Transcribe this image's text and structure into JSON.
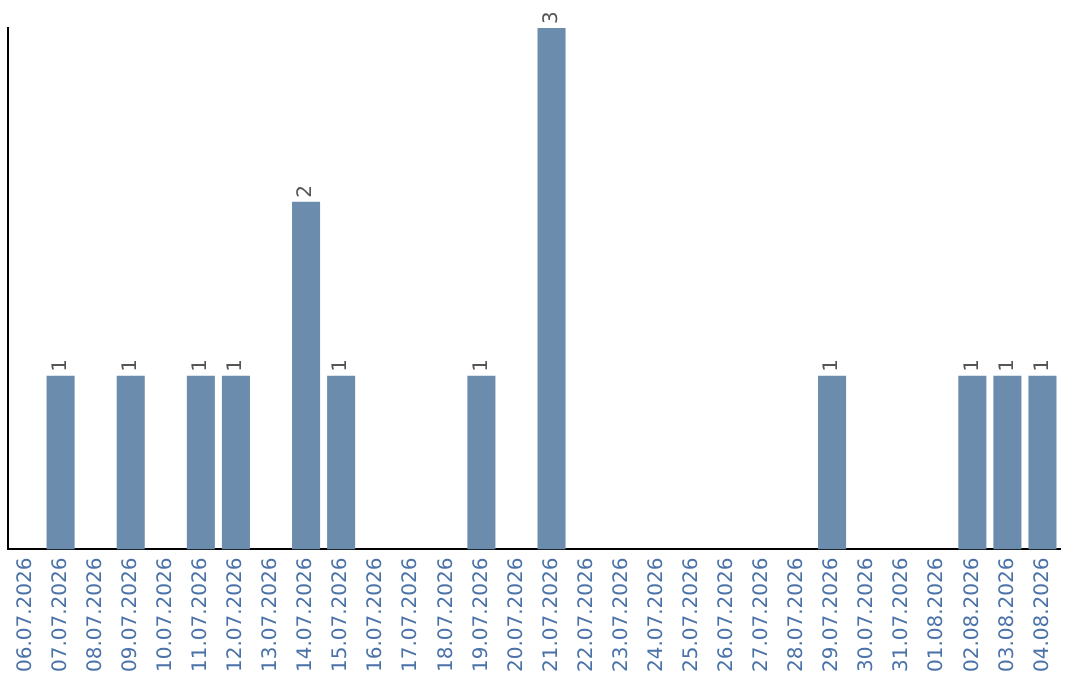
{
  "chart_data": {
    "type": "bar",
    "categories": [
      "06.07.2026",
      "07.07.2026",
      "08.07.2026",
      "09.07.2026",
      "10.07.2026",
      "11.07.2026",
      "12.07.2026",
      "13.07.2026",
      "14.07.2026",
      "15.07.2026",
      "16.07.2026",
      "17.07.2026",
      "18.07.2026",
      "19.07.2026",
      "20.07.2026",
      "21.07.2026",
      "22.07.2026",
      "23.07.2026",
      "24.07.2026",
      "25.07.2026",
      "26.07.2026",
      "27.07.2026",
      "28.07.2026",
      "29.07.2026",
      "30.07.2026",
      "31.07.2026",
      "01.08.2026",
      "02.08.2026",
      "03.08.2026",
      "04.08.2026"
    ],
    "values": [
      0,
      1,
      0,
      1,
      0,
      1,
      1,
      0,
      2,
      1,
      0,
      0,
      0,
      1,
      0,
      3,
      0,
      0,
      0,
      0,
      0,
      0,
      0,
      1,
      0,
      0,
      0,
      1,
      1,
      1
    ],
    "value_labels": [
      null,
      "1",
      null,
      "1",
      null,
      "1",
      "1",
      null,
      "2",
      "1",
      null,
      null,
      null,
      "1",
      null,
      "3",
      null,
      null,
      null,
      null,
      null,
      null,
      null,
      "1",
      null,
      null,
      null,
      "1",
      "1",
      "1"
    ],
    "color": "#6b8cad",
    "grid": false,
    "legend": false,
    "tick_labels": "x"
  }
}
